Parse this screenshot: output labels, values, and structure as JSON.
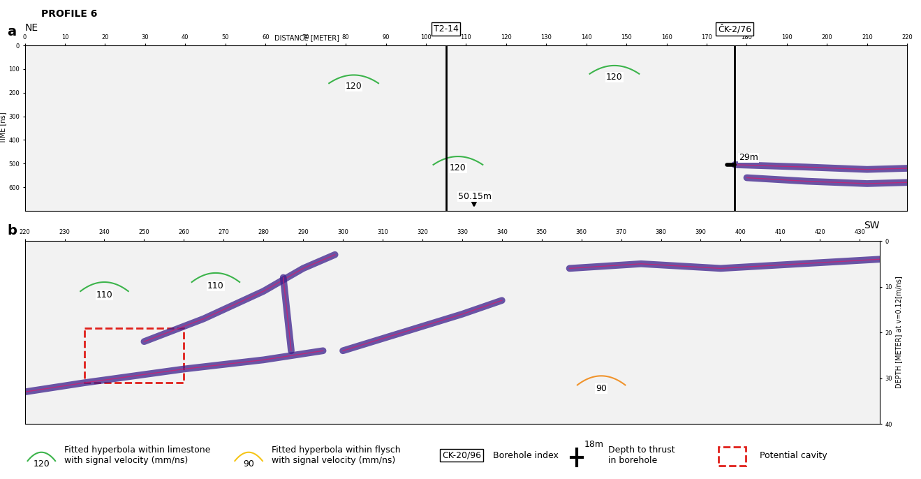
{
  "title": "PROFILE 6",
  "legend_items": [
    {
      "kind": "hyperbola",
      "sample": "120",
      "color": "#3cb44b",
      "text": "Fitted hyperbola within limestone\nwith signal velocity (mm/ns)"
    },
    {
      "kind": "hyperbola",
      "sample": "90",
      "color": "#f5c518",
      "text": "Fitted hyperbola within flysch\nwith signal velocity (mm/ns)"
    },
    {
      "kind": "borehole",
      "sample": "CK-20/96",
      "text": "Borehole index"
    },
    {
      "kind": "depth",
      "sample": "18m",
      "text": "Depth to thrust\nin borehole"
    },
    {
      "kind": "cavity",
      "text": "Potential cavity"
    }
  ],
  "chart_data": [
    {
      "type": "radargram",
      "panel": "a",
      "left_label": "NE",
      "xlabel": "DISTANCE [METER]",
      "ylabel": "TIME [ns]",
      "xlim": [
        0,
        220
      ],
      "xticks": [
        0,
        10,
        20,
        30,
        40,
        50,
        60,
        70,
        80,
        90,
        100,
        110,
        120,
        130,
        140,
        150,
        160,
        170,
        180,
        190,
        200,
        210,
        220
      ],
      "ylim": [
        700,
        0
      ],
      "yticks": [
        0,
        100,
        200,
        300,
        400,
        500,
        600
      ],
      "color": "#3b1f8c",
      "hyperbolas": [
        {
          "x": 82,
          "y": 125,
          "velocity": 120,
          "color": "#3cb44b"
        },
        {
          "x": 147,
          "y": 85,
          "velocity": 120,
          "color": "#3cb44b"
        },
        {
          "x": 108,
          "y": 470,
          "velocity": 120,
          "color": "#3cb44b"
        }
      ],
      "boreholes": [
        {
          "name": "T2-14",
          "x": 105,
          "depth_label": "50.15m",
          "y": 640,
          "marker": "arrow"
        },
        {
          "name": "ČK-2/76",
          "x": 177,
          "depth_label": "29m",
          "y": 505,
          "marker": "plus"
        }
      ],
      "reflectors": [
        [
          [
            177,
            505
          ],
          [
            195,
            515
          ],
          [
            210,
            525
          ],
          [
            220,
            520
          ]
        ],
        [
          [
            180,
            560
          ],
          [
            195,
            575
          ],
          [
            210,
            585
          ],
          [
            220,
            580
          ]
        ]
      ]
    },
    {
      "type": "radargram",
      "panel": "b",
      "right_label": "SW",
      "ylabel": "DEPTH [METER] at v=0.12[m/ns]",
      "xlim": [
        220,
        435
      ],
      "xticks": [
        220,
        230,
        240,
        250,
        260,
        270,
        280,
        290,
        300,
        310,
        320,
        330,
        340,
        350,
        360,
        370,
        380,
        390,
        400,
        410,
        420,
        430
      ],
      "ylim": [
        40,
        0
      ],
      "yticks": [
        0,
        10,
        20,
        30,
        40
      ],
      "color": "#3b1f8c",
      "hyperbolas": [
        {
          "x": 240,
          "y": 9,
          "velocity": 110,
          "color": "#3cb44b"
        },
        {
          "x": 268,
          "y": 7,
          "velocity": 110,
          "color": "#3cb44b"
        },
        {
          "x": 365,
          "y": 29.5,
          "velocity": 90,
          "color": "#f0932b"
        }
      ],
      "cavity_x": [
        235,
        260
      ],
      "cavity_y": [
        19,
        31
      ],
      "reflectors": [
        [
          [
            220,
            33
          ],
          [
            235,
            31
          ],
          [
            260,
            28
          ],
          [
            280,
            26
          ],
          [
            295,
            24
          ]
        ],
        [
          [
            250,
            22
          ],
          [
            265,
            17
          ],
          [
            280,
            11
          ],
          [
            290,
            6
          ],
          [
            298,
            3
          ]
        ],
        [
          [
            300,
            24
          ],
          [
            315,
            20
          ],
          [
            330,
            16
          ],
          [
            340,
            13
          ]
        ],
        [
          [
            285,
            8
          ],
          [
            286,
            16
          ],
          [
            287,
            24
          ]
        ],
        [
          [
            357,
            6
          ],
          [
            375,
            5
          ],
          [
            395,
            6
          ],
          [
            415,
            5
          ],
          [
            435,
            4
          ]
        ]
      ]
    }
  ]
}
